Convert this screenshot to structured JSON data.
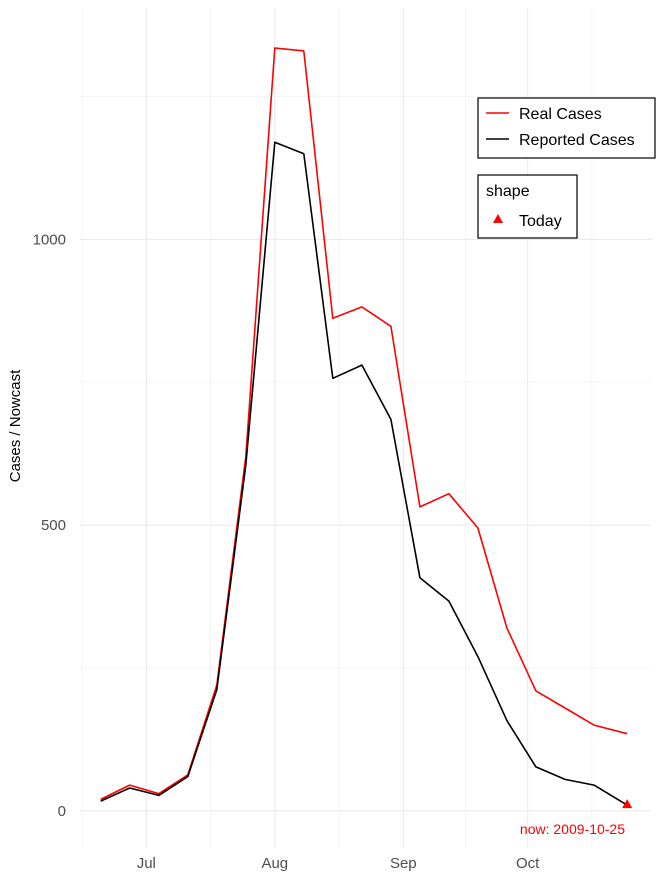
{
  "chart_data": {
    "type": "line",
    "ylabel": "Cases / Nowcast",
    "x_ticks": [
      "Jul",
      "Aug",
      "Sep",
      "Oct"
    ],
    "x_tick_dates": [
      "2009-07-01",
      "2009-08-01",
      "2009-09-01",
      "2009-10-01"
    ],
    "y_ticks": [
      0,
      500,
      1000
    ],
    "ylim": [
      -65,
      1405
    ],
    "xlim": [
      "2009-06-15",
      "2009-10-31"
    ],
    "grid": true,
    "legend_position": "top-right",
    "x": [
      "2009-06-20",
      "2009-06-27",
      "2009-07-04",
      "2009-07-11",
      "2009-07-18",
      "2009-07-25",
      "2009-08-01",
      "2009-08-08",
      "2009-08-15",
      "2009-08-22",
      "2009-08-29",
      "2009-09-05",
      "2009-09-12",
      "2009-09-19",
      "2009-09-26",
      "2009-10-03",
      "2009-10-10",
      "2009-10-17",
      "2009-10-25"
    ],
    "series": [
      {
        "name": "Real Cases",
        "color": "#ff0000",
        "values": [
          20,
          45,
          30,
          63,
          220,
          620,
          1335,
          1330,
          862,
          882,
          848,
          532,
          555,
          495,
          320,
          210,
          180,
          150,
          135
        ]
      },
      {
        "name": "Reported Cases",
        "color": "#000000",
        "values": [
          17,
          40,
          27,
          60,
          212,
          605,
          1170,
          1150,
          757,
          780,
          685,
          408,
          367,
          270,
          158,
          77,
          55,
          45,
          10
        ]
      }
    ],
    "legends": [
      {
        "title": "",
        "entries": [
          "Real Cases",
          "Reported Cases"
        ]
      },
      {
        "title": "shape",
        "entries": [
          "Today"
        ]
      }
    ],
    "marker": {
      "label": "Today",
      "date": "2009-10-25",
      "value": 10,
      "color": "#ff0000"
    },
    "annotation": {
      "text": "now: 2009-10-25",
      "color": "#ff0000"
    }
  }
}
